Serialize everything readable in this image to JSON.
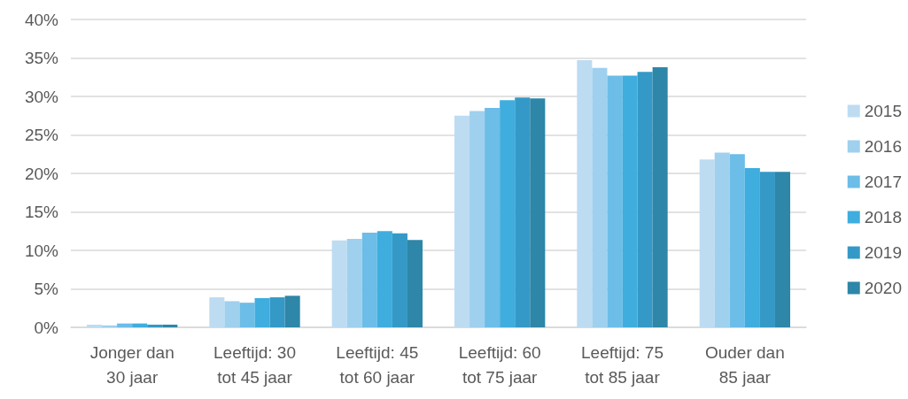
{
  "chart_data": {
    "type": "bar",
    "categories": [
      "Jonger dan\n30 jaar",
      "Leeftijd: 30\ntot 45 jaar",
      "Leeftijd: 45\ntot 60 jaar",
      "Leeftijd: 60\ntot 75 jaar",
      "Leeftijd: 75\ntot 85 jaar",
      "Ouder dan\n85 jaar"
    ],
    "series": [
      {
        "name": "2015",
        "color": "#bddcf2",
        "values": [
          0.35,
          3.9,
          11.3,
          27.5,
          34.7,
          21.8
        ]
      },
      {
        "name": "2016",
        "color": "#9fd0ee",
        "values": [
          0.25,
          3.4,
          11.5,
          28.1,
          33.7,
          22.7
        ]
      },
      {
        "name": "2017",
        "color": "#6cbde8",
        "values": [
          0.5,
          3.2,
          12.3,
          28.5,
          32.7,
          22.5
        ]
      },
      {
        "name": "2018",
        "color": "#3fadde",
        "values": [
          0.5,
          3.8,
          12.5,
          29.5,
          32.7,
          20.7
        ]
      },
      {
        "name": "2019",
        "color": "#3499c6",
        "values": [
          0.35,
          3.9,
          12.2,
          29.85,
          33.2,
          20.2
        ]
      },
      {
        "name": "2020",
        "color": "#2e86a8",
        "values": [
          0.35,
          4.1,
          11.35,
          29.75,
          33.8,
          20.2
        ]
      }
    ],
    "ylim": [
      0,
      40
    ],
    "yticks": [
      {
        "value": 0,
        "label": "0%"
      },
      {
        "value": 5,
        "label": "5%"
      },
      {
        "value": 10,
        "label": "10%"
      },
      {
        "value": 15,
        "label": "15%"
      },
      {
        "value": 20,
        "label": "20%"
      },
      {
        "value": 25,
        "label": "25%"
      },
      {
        "value": 30,
        "label": "30%"
      },
      {
        "value": 35,
        "label": "35%"
      },
      {
        "value": 40,
        "label": "40%"
      }
    ],
    "grid": "y",
    "legend": "right"
  }
}
